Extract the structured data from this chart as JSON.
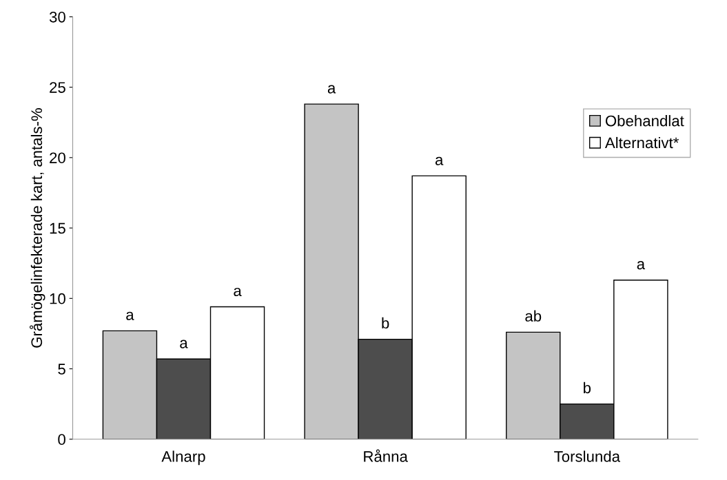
{
  "chart_data": {
    "type": "bar",
    "ylabel": "Gråmögelinfekterade kart, antals-%",
    "categories": [
      "Alnarp",
      "Rånna",
      "Torslunda"
    ],
    "series": [
      {
        "name": "Obehandlat",
        "color": "#c4c4c4",
        "values": [
          7.7,
          23.8,
          7.6
        ],
        "value_labels": [
          "a",
          "a",
          "ab"
        ]
      },
      {
        "color": "#4d4d4d",
        "values": [
          5.7,
          7.1,
          2.5
        ],
        "value_labels": [
          "a",
          "b",
          "b"
        ]
      },
      {
        "name": "Alternativt*",
        "color": "#ffffff",
        "values": [
          9.4,
          18.7,
          11.3
        ],
        "value_labels": [
          "a",
          "a",
          "a"
        ]
      }
    ],
    "ylim": [
      0,
      30
    ],
    "yticks": [
      0,
      5,
      10,
      15,
      20,
      25,
      30
    ],
    "legend": "top right"
  }
}
